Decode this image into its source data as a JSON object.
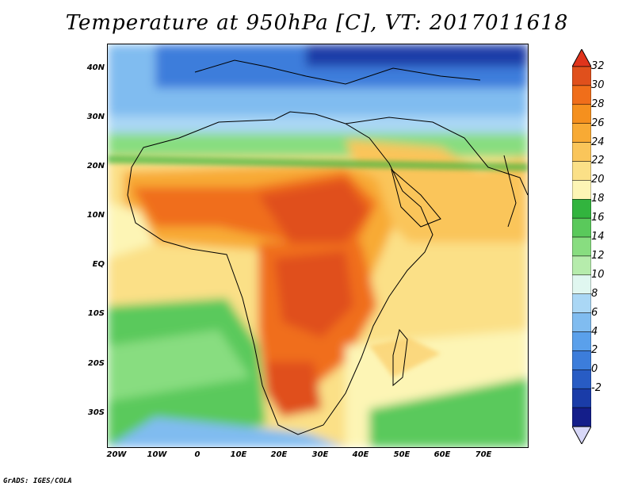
{
  "title": "Temperature at 950hPa [C], VT: 2017011618",
  "credit": "GrADS: IGES/COLA",
  "chart_data": {
    "type": "heatmap",
    "variable": "Temperature",
    "level": "950hPa",
    "units": "C",
    "valid_time": "2017011618",
    "lat_range": [
      -36,
      45
    ],
    "lon_range": [
      -23,
      78
    ],
    "y_ticks": [
      "40N",
      "30N",
      "20N",
      "10N",
      "EQ",
      "10S",
      "20S",
      "30S"
    ],
    "y_tick_values": [
      40,
      30,
      20,
      10,
      0,
      -10,
      -20,
      -30
    ],
    "x_ticks": [
      "20W",
      "10W",
      "0",
      "10E",
      "20E",
      "30E",
      "40E",
      "50E",
      "60E",
      "70E"
    ],
    "x_tick_values": [
      -20,
      -10,
      0,
      10,
      20,
      30,
      40,
      50,
      60,
      70
    ],
    "colorbar_levels": [
      32,
      30,
      28,
      26,
      24,
      22,
      20,
      18,
      16,
      14,
      12,
      10,
      8,
      6,
      4,
      2,
      0,
      -2
    ],
    "colorbar_colors": [
      "#e0501c",
      "#f06e1a",
      "#f5901e",
      "#f8aa34",
      "#fac55a",
      "#fbe087",
      "#fdf5b5",
      "#32b43e",
      "#5ac95b",
      "#88dd80",
      "#b6ecac",
      "#e0f7f0",
      "#aad7f5",
      "#80bcf0",
      "#5aa0eb",
      "#3c7ddb",
      "#285cc4",
      "#1a3ca8",
      "#141e8a"
    ],
    "colorbar_over": "#e0341c",
    "colorbar_under": "#d8d8f8",
    "land_edge_color": "#000000"
  }
}
